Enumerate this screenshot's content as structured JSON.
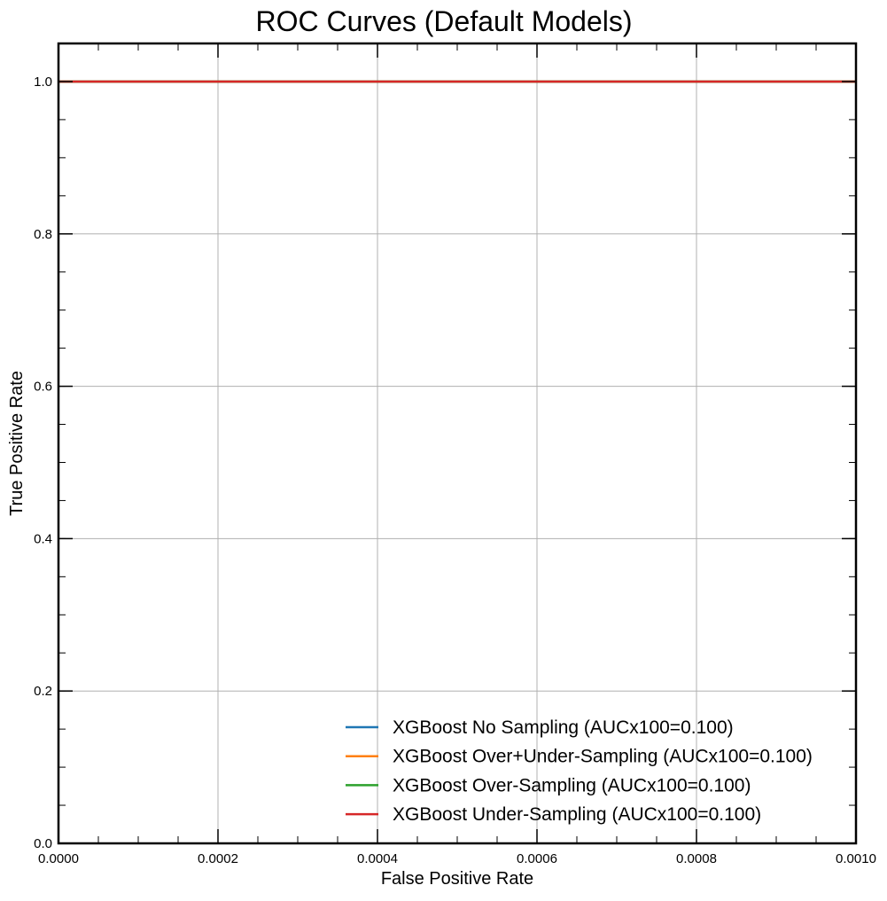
{
  "chart_data": {
    "type": "line",
    "title": "ROC Curves (Default Models)",
    "xlabel": "False Positive Rate",
    "ylabel": "True Positive Rate",
    "xlim": [
      0.0,
      0.001
    ],
    "ylim": [
      0.0,
      1.05
    ],
    "x_ticks": [
      0.0,
      0.0002,
      0.0004,
      0.0006,
      0.0008,
      0.001
    ],
    "x_tick_labels": [
      "0.0000",
      "0.0002",
      "0.0004",
      "0.0006",
      "0.0008",
      "0.0010"
    ],
    "y_ticks": [
      0.0,
      0.2,
      0.4,
      0.6,
      0.8,
      1.0
    ],
    "y_tick_labels": [
      "0.0",
      "0.2",
      "0.4",
      "0.6",
      "0.8",
      "1.0"
    ],
    "grid": true,
    "legend_position": "bottom-right",
    "series": [
      {
        "name": "XGBoost No Sampling (AUCx100=0.100)",
        "color": "#1f77b4",
        "x": [
          0.0,
          0.001
        ],
        "y": [
          1.0,
          1.0
        ]
      },
      {
        "name": "XGBoost Over+Under-Sampling (AUCx100=0.100)",
        "color": "#ff7f0e",
        "x": [
          0.0,
          0.001
        ],
        "y": [
          1.0,
          1.0
        ]
      },
      {
        "name": "XGBoost Over-Sampling (AUCx100=0.100)",
        "color": "#2ca02c",
        "x": [
          0.0,
          0.001
        ],
        "y": [
          1.0,
          1.0
        ]
      },
      {
        "name": "XGBoost Under-Sampling (AUCx100=0.100)",
        "color": "#d62728",
        "x": [
          0.0,
          0.001
        ],
        "y": [
          1.0,
          1.0
        ]
      }
    ]
  }
}
